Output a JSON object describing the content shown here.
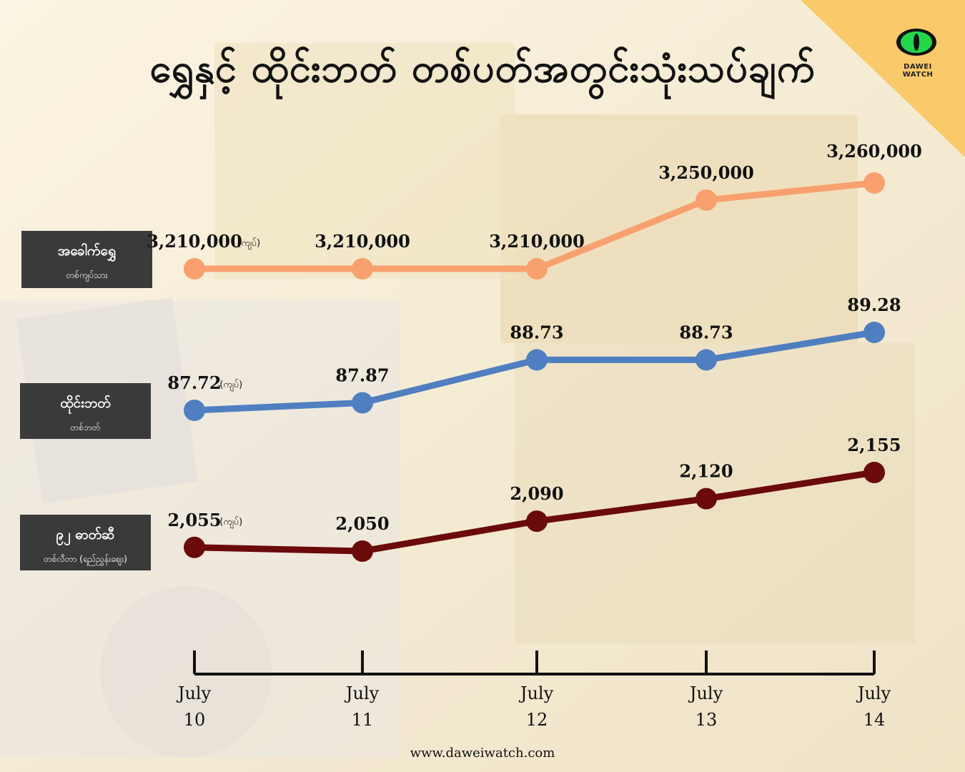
{
  "header": {
    "title": "ရွှေနှင့် ထိုင်းဘတ် တစ်ပတ်အတွင်းသုံးသပ်ချက်",
    "brand": "DAWEI WATCH"
  },
  "footer": {
    "url": "www.daweiwatch.com"
  },
  "colors": {
    "gold": "#f8a06e",
    "baht": "#4f7fc0",
    "fuel": "#6b0a0a",
    "axis": "#111111",
    "legend_bg": "#3a3a3a",
    "corner": "#f9c96a"
  },
  "legend": [
    {
      "name": "အခေါက်ရွှေ",
      "unit": "တစ်ကျပ်သား"
    },
    {
      "name": "ထိုင်းဘတ်",
      "unit": "တစ်ဘတ်"
    },
    {
      "name": "၉၂ ဓာတ်ဆီ",
      "unit": "တစ်လီတာ (ရည်ညွှန်းဈေး)"
    }
  ],
  "chart_data": {
    "type": "line",
    "categories": [
      [
        "July",
        "10"
      ],
      [
        "July",
        "11"
      ],
      [
        "July",
        "12"
      ],
      [
        "July",
        "13"
      ],
      [
        "July",
        "14"
      ]
    ],
    "currency_note": "(ကျပ်)",
    "series": [
      {
        "name": "အခေါက်ရွှေ",
        "color": "#f8a06e",
        "values": [
          3210000,
          3210000,
          3210000,
          3250000,
          3260000
        ],
        "labels": [
          "3,210,000",
          "3,210,000",
          "3,210,000",
          "3,250,000",
          "3,260,000"
        ]
      },
      {
        "name": "ထိုင်းဘတ်",
        "color": "#4f7fc0",
        "values": [
          87.72,
          87.87,
          88.73,
          88.73,
          89.28
        ],
        "labels": [
          "87.72",
          "87.87",
          "88.73",
          "88.73",
          "89.28"
        ]
      },
      {
        "name": "၉၂ ဓာတ်ဆီ",
        "color": "#6b0a0a",
        "values": [
          2055,
          2050,
          2090,
          2120,
          2155
        ],
        "labels": [
          "2,055",
          "2,050",
          "2,090",
          "2,120",
          "2,155"
        ]
      }
    ]
  }
}
